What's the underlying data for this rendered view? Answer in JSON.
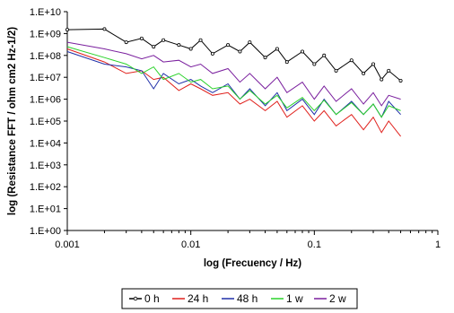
{
  "chart_data": {
    "type": "line",
    "xlabel": "log (Frecuency / Hz)",
    "ylabel": "log (Resistance FFT / ohm cm2 Hz-1/2)",
    "x_scale": "log",
    "y_scale": "log",
    "xlim": [
      0.001,
      1
    ],
    "ylim": [
      1,
      10000000000
    ],
    "x_ticks": [
      "0.001",
      "0.01",
      "0.1",
      "1"
    ],
    "y_ticks": [
      "1.E+00",
      "1.E+01",
      "1.E+02",
      "1.E+03",
      "1.E+04",
      "1.E+05",
      "1.E+06",
      "1.E+07",
      "1.E+08",
      "1.E+09",
      "1.E+10"
    ],
    "grid": false,
    "legend_position": "bottom",
    "series": [
      {
        "name": "0 h",
        "color": "#000000",
        "marker": true,
        "x": [
          0.001,
          0.002,
          0.003,
          0.004,
          0.005,
          0.006,
          0.008,
          0.01,
          0.012,
          0.015,
          0.02,
          0.025,
          0.03,
          0.04,
          0.05,
          0.06,
          0.08,
          0.1,
          0.12,
          0.15,
          0.2,
          0.25,
          0.3,
          0.35,
          0.4,
          0.5
        ],
        "y": [
          1500000000.0,
          1600000000.0,
          400000000.0,
          600000000.0,
          250000000.0,
          500000000.0,
          300000000.0,
          200000000.0,
          500000000.0,
          120000000.0,
          300000000.0,
          150000000.0,
          400000000.0,
          80000000.0,
          200000000.0,
          50000000.0,
          150000000.0,
          40000000.0,
          100000000.0,
          20000000.0,
          60000000.0,
          15000000.0,
          40000000.0,
          8000000.0,
          20000000.0,
          7000000.0
        ]
      },
      {
        "name": "24 h",
        "color": "#e0201c",
        "marker": false,
        "x": [
          0.001,
          0.002,
          0.003,
          0.004,
          0.005,
          0.006,
          0.008,
          0.01,
          0.012,
          0.015,
          0.02,
          0.025,
          0.03,
          0.04,
          0.05,
          0.06,
          0.08,
          0.1,
          0.12,
          0.15,
          0.2,
          0.25,
          0.3,
          0.35,
          0.4,
          0.5
        ],
        "y": [
          200000000.0,
          50000000.0,
          15000000.0,
          20000000.0,
          8000000.0,
          10000000.0,
          2500000.0,
          5000000.0,
          3000000.0,
          1500000.0,
          2000000.0,
          600000.0,
          1000000.0,
          300000.0,
          800000.0,
          150000.0,
          500000.0,
          100000.0,
          300000.0,
          60000.0,
          200000.0,
          40000.0,
          150000.0,
          30000.0,
          100000.0,
          20000.0
        ]
      },
      {
        "name": "48 h",
        "color": "#1f2fa8",
        "marker": false,
        "x": [
          0.001,
          0.002,
          0.003,
          0.004,
          0.005,
          0.006,
          0.008,
          0.01,
          0.012,
          0.015,
          0.02,
          0.025,
          0.03,
          0.04,
          0.05,
          0.06,
          0.08,
          0.1,
          0.12,
          0.15,
          0.2,
          0.25,
          0.3,
          0.35,
          0.4,
          0.5
        ],
        "y": [
          150000000.0,
          40000000.0,
          30000000.0,
          20000000.0,
          3000000.0,
          15000000.0,
          5000000.0,
          8000000.0,
          4000000.0,
          2000000.0,
          5000000.0,
          1000000.0,
          3000000.0,
          500000.0,
          2000000.0,
          300000.0,
          1000000.0,
          200000.0,
          1000000.0,
          200000.0,
          800000.0,
          200000.0,
          600000.0,
          150000.0,
          800000.0,
          200000.0
        ]
      },
      {
        "name": "1 w",
        "color": "#2ad22a",
        "marker": false,
        "x": [
          0.001,
          0.002,
          0.003,
          0.004,
          0.005,
          0.006,
          0.008,
          0.01,
          0.012,
          0.015,
          0.02,
          0.025,
          0.03,
          0.04,
          0.05,
          0.06,
          0.08,
          0.1,
          0.12,
          0.15,
          0.2,
          0.25,
          0.3,
          0.35,
          0.4,
          0.5
        ],
        "y": [
          250000000.0,
          80000000.0,
          40000000.0,
          15000000.0,
          30000000.0,
          8000000.0,
          15000000.0,
          6000000.0,
          8000000.0,
          3000000.0,
          4000000.0,
          1000000.0,
          2500000.0,
          600000.0,
          1500000.0,
          400000.0,
          1200000.0,
          300000.0,
          900000.0,
          200000.0,
          700000.0,
          200000.0,
          600000.0,
          150000.0,
          500000.0,
          300000.0
        ]
      },
      {
        "name": "2 w",
        "color": "#7a1f9e",
        "marker": false,
        "x": [
          0.001,
          0.002,
          0.003,
          0.004,
          0.005,
          0.006,
          0.008,
          0.01,
          0.012,
          0.015,
          0.02,
          0.025,
          0.03,
          0.04,
          0.05,
          0.06,
          0.08,
          0.1,
          0.12,
          0.15,
          0.2,
          0.25,
          0.3,
          0.35,
          0.4,
          0.5
        ],
        "y": [
          400000000.0,
          200000000.0,
          120000000.0,
          70000000.0,
          100000000.0,
          50000000.0,
          60000000.0,
          30000000.0,
          40000000.0,
          15000000.0,
          25000000.0,
          6000000.0,
          15000000.0,
          3000000.0,
          10000000.0,
          2000000.0,
          6000000.0,
          1000000.0,
          4000000.0,
          800000.0,
          3000000.0,
          600000.0,
          2000000.0,
          500000.0,
          1500000.0,
          1000000.0
        ]
      }
    ]
  }
}
